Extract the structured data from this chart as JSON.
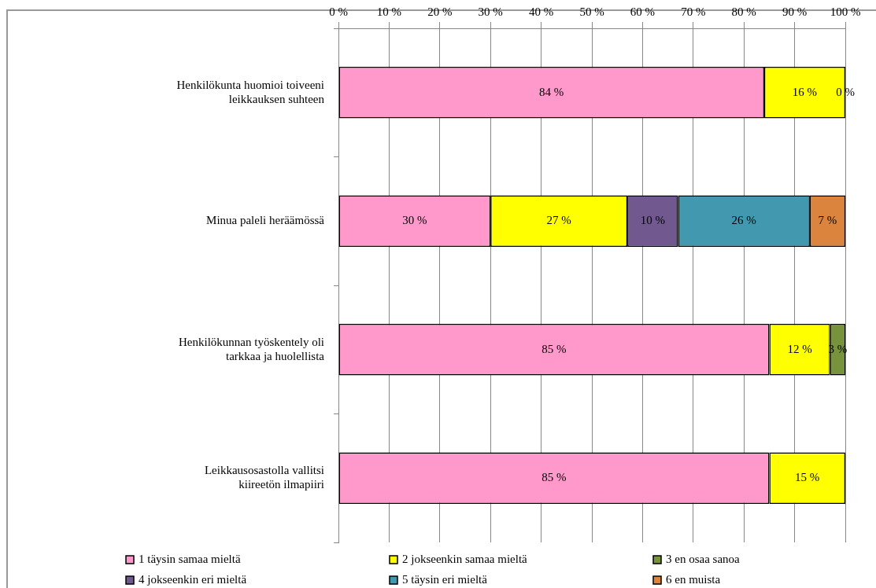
{
  "chart_data": {
    "type": "bar",
    "orientation": "horizontal",
    "stacked": true,
    "categories": [
      "Henkilökunta huomioi toiveeni leikkauksen suhteen",
      "Minua paleli heräämössä",
      "Henkilökunnan työskentely oli tarkkaa ja huolellista",
      "Leikkausosastolla vallitsi kiireetön ilmapiiri"
    ],
    "series": [
      {
        "name": "1 täysin samaa mieltä",
        "color": "#ff99cc",
        "values": [
          84,
          30,
          85,
          85
        ],
        "value_labels": [
          "84 %",
          "30 %",
          "85 %",
          "85 %"
        ]
      },
      {
        "name": "2 jokseenkin samaa mieltä",
        "color": "#ffff00",
        "values": [
          16,
          27,
          12,
          15
        ],
        "value_labels": [
          "16 %",
          "27 %",
          "12 %",
          "15 %"
        ]
      },
      {
        "name": "3 en osaa sanoa",
        "color": "#77933c",
        "values": [
          0,
          null,
          3,
          null
        ],
        "value_labels": [
          "0 %",
          null,
          "3 %",
          null
        ]
      },
      {
        "name": "4 jokseenkin eri mieltä",
        "color": "#71588f",
        "values": [
          null,
          10,
          null,
          null
        ],
        "value_labels": [
          null,
          "10 %",
          null,
          null
        ]
      },
      {
        "name": "5 täysin eri mieltä",
        "color": "#4198af",
        "values": [
          null,
          26,
          null,
          null
        ],
        "value_labels": [
          null,
          "26 %",
          null,
          null
        ]
      },
      {
        "name": "6 en muista",
        "color": "#db843d",
        "values": [
          null,
          7,
          null,
          null
        ],
        "value_labels": [
          null,
          "7 %",
          null,
          null
        ]
      }
    ],
    "xlim": [
      0,
      100
    ],
    "xticks": [
      {
        "value": 0,
        "label": "0 %"
      },
      {
        "value": 10,
        "label": "10 %"
      },
      {
        "value": 20,
        "label": "20 %"
      },
      {
        "value": 30,
        "label": "30 %"
      },
      {
        "value": 40,
        "label": "40 %"
      },
      {
        "value": 50,
        "label": "50 %"
      },
      {
        "value": 60,
        "label": "60 %"
      },
      {
        "value": 70,
        "label": "70 %"
      },
      {
        "value": 80,
        "label": "80 %"
      },
      {
        "value": 90,
        "label": "90 %"
      },
      {
        "value": 100,
        "label": "100 %"
      }
    ],
    "grid": "x",
    "legend": "bottom"
  }
}
